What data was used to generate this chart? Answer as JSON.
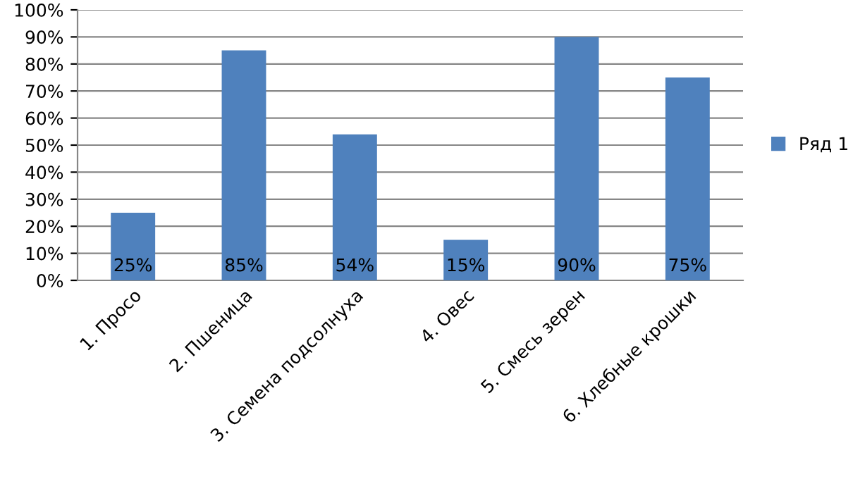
{
  "chart_data": {
    "type": "bar",
    "categories": [
      "1. Просо",
      "2. Пшеница",
      "3. Семена подсолнуха",
      "4. Овес",
      "5. Смесь зерен",
      "6. Хлебные крошки"
    ],
    "series": [
      {
        "name": "Ряд 1",
        "color": "#4f81bd",
        "values": [
          25,
          85,
          54,
          15,
          90,
          75
        ],
        "value_labels": [
          "25%",
          "85%",
          "54%",
          "15%",
          "90%",
          "75%"
        ]
      }
    ],
    "ylim": [
      0,
      100
    ],
    "yticks": [
      {
        "value": 0,
        "label": "0%"
      },
      {
        "value": 10,
        "label": "10%"
      },
      {
        "value": 20,
        "label": "20%"
      },
      {
        "value": 30,
        "label": "30%"
      },
      {
        "value": 40,
        "label": "40%"
      },
      {
        "value": 50,
        "label": "50%"
      },
      {
        "value": 60,
        "label": "60%"
      },
      {
        "value": 70,
        "label": "70%"
      },
      {
        "value": 80,
        "label": "80%"
      },
      {
        "value": 90,
        "label": "90%"
      },
      {
        "value": 100,
        "label": "100%"
      }
    ],
    "grid": "y",
    "legend": "right"
  }
}
